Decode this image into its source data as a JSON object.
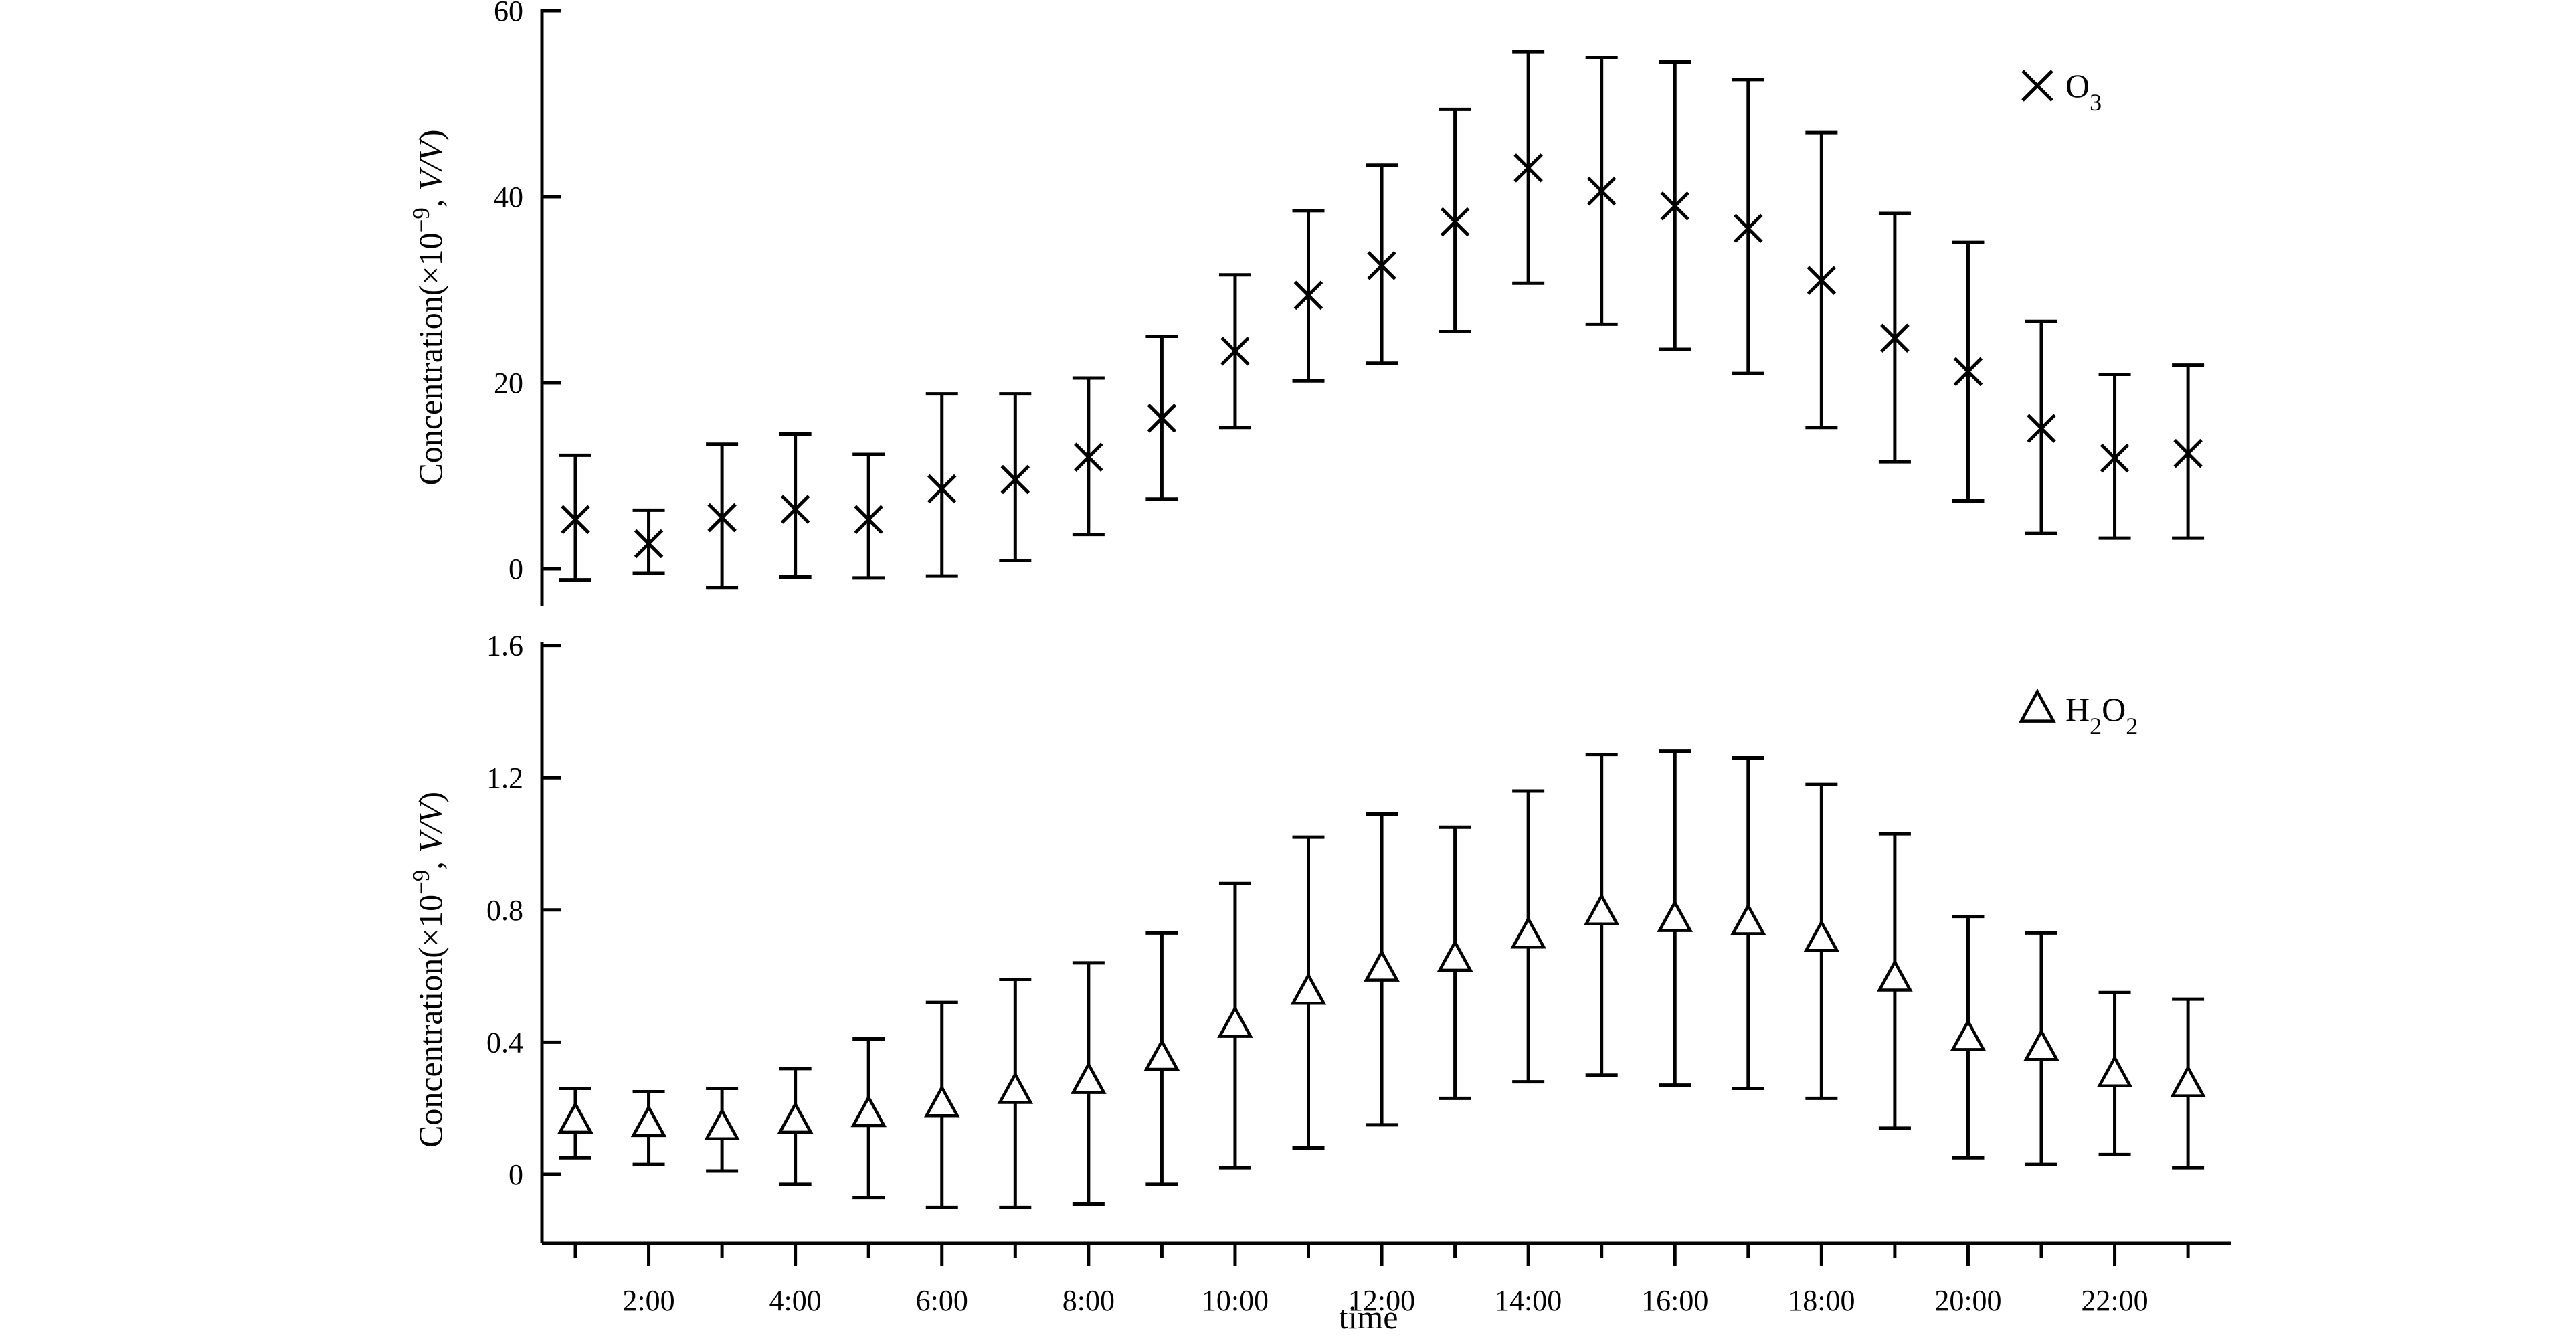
{
  "chart_data": [
    {
      "type": "scatter",
      "series": [
        {
          "name": "O₃",
          "marker": "x",
          "x": [
            1,
            2,
            3,
            4,
            5,
            6,
            7,
            8,
            9,
            10,
            11,
            12,
            13,
            14,
            15,
            16,
            17,
            18,
            19,
            20,
            21,
            22,
            23
          ],
          "values": [
            5.3,
            2.7,
            5.5,
            6.4,
            5.3,
            8.6,
            9.6,
            12.0,
            16.2,
            23.4,
            29.4,
            32.6,
            37.3,
            43.1,
            40.6,
            39.0,
            36.6,
            31.0,
            24.8,
            21.2,
            15.1,
            11.9,
            12.4
          ],
          "upper": [
            12.2,
            6.3,
            13.4,
            14.5,
            12.3,
            18.8,
            18.8,
            20.5,
            25.0,
            31.6,
            38.5,
            43.4,
            49.4,
            55.6,
            55.0,
            54.5,
            52.6,
            46.9,
            38.2,
            35.1,
            26.6,
            20.9,
            21.9
          ],
          "lower": [
            -1.2,
            -0.5,
            -2.0,
            -0.9,
            -1.0,
            -0.8,
            0.9,
            3.7,
            7.5,
            15.2,
            20.2,
            22.1,
            25.5,
            30.7,
            26.3,
            23.6,
            21.0,
            15.2,
            11.5,
            7.3,
            3.8,
            3.3,
            3.3
          ]
        }
      ],
      "ylabel": "Concentration(×10⁻⁹, V/V)",
      "xlabel": "",
      "ylim": [
        -2.5,
        60
      ],
      "xlim": [
        0.2,
        23.5
      ],
      "yticks": [
        0,
        20,
        40,
        60
      ],
      "grid": false,
      "legend": "top-right"
    },
    {
      "type": "scatter",
      "series": [
        {
          "name": "H₂O₂",
          "marker": "triangle",
          "x": [
            1,
            2,
            3,
            4,
            5,
            6,
            7,
            8,
            9,
            10,
            11,
            12,
            13,
            14,
            15,
            16,
            17,
            18,
            19,
            20,
            21,
            22,
            23
          ],
          "values": [
            0.16,
            0.15,
            0.14,
            0.16,
            0.18,
            0.21,
            0.25,
            0.28,
            0.35,
            0.45,
            0.55,
            0.62,
            0.65,
            0.72,
            0.79,
            0.77,
            0.76,
            0.71,
            0.59,
            0.41,
            0.38,
            0.3,
            0.27
          ],
          "upper": [
            0.26,
            0.25,
            0.26,
            0.32,
            0.41,
            0.52,
            0.59,
            0.64,
            0.73,
            0.88,
            1.02,
            1.09,
            1.05,
            1.16,
            1.27,
            1.28,
            1.26,
            1.18,
            1.03,
            0.78,
            0.73,
            0.55,
            0.53
          ],
          "lower": [
            0.05,
            0.03,
            0.01,
            -0.03,
            -0.07,
            -0.1,
            -0.1,
            -0.09,
            -0.03,
            0.02,
            0.08,
            0.15,
            0.23,
            0.28,
            0.3,
            0.27,
            0.26,
            0.23,
            0.14,
            0.05,
            0.03,
            0.06,
            0.02
          ]
        }
      ],
      "ylabel": "Concentration(×10⁻⁹, V/V)",
      "xlabel": "time",
      "ylim": [
        -0.22,
        1.6
      ],
      "xlim": [
        0.2,
        23.5
      ],
      "yticks": [
        0,
        0.4,
        0.8,
        1.2,
        1.6
      ],
      "ytick_labels": [
        "0",
        "0.4",
        "0.8",
        "1.2",
        "1.6"
      ],
      "xticks": [
        2,
        4,
        6,
        8,
        10,
        12,
        14,
        16,
        18,
        20,
        22
      ],
      "xtick_labels": [
        "2:00",
        "4:00",
        "6:00",
        "8:00",
        "10:00",
        "12:00",
        "14:00",
        "16:00",
        "18:00",
        "20:00",
        "22:00"
      ],
      "grid": false,
      "legend": "top-right"
    }
  ]
}
